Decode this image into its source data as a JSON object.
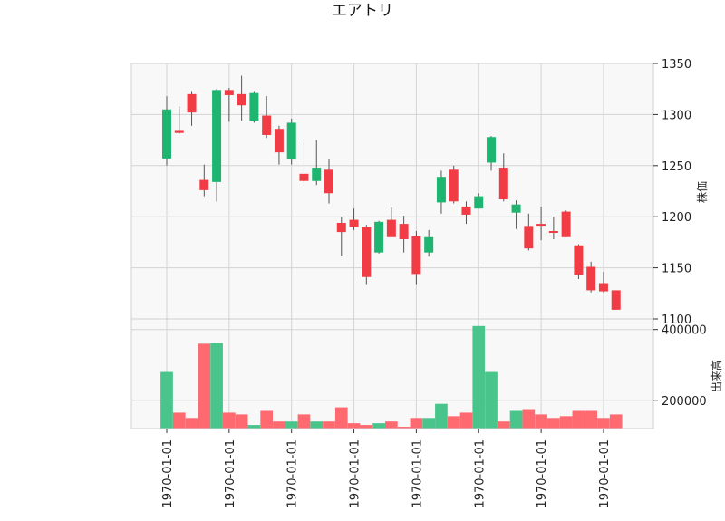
{
  "chart_data": {
    "type": "candlestick",
    "title": "エアトリ",
    "price_axis": {
      "label": "株価",
      "ylim": [
        1100,
        1350
      ],
      "ticks": [
        1100,
        1150,
        1200,
        1250,
        1300,
        1350
      ]
    },
    "volume_axis": {
      "label": "出来高",
      "ylim": [
        120000,
        430000
      ],
      "ticks": [
        200000,
        400000
      ],
      "tick_labels": [
        "200000",
        "400000"
      ]
    },
    "x_tick_labels": [
      "1970-01-01",
      "1970-01-01",
      "1970-01-01",
      "1970-01-01",
      "1970-01-01",
      "1970-01-01",
      "1970-01-01",
      "1970-01-01"
    ],
    "x_tick_positions": [
      0,
      5,
      10,
      15,
      20,
      25,
      30,
      35
    ],
    "grid": true,
    "colors": {
      "up": "#1db56f",
      "down": "#f23c45",
      "vol_up": "#49c58c",
      "vol_down": "#ff6a70",
      "panel_bg": "#f8f8f8",
      "grid": "#d4d4d4"
    },
    "candles": [
      {
        "o": 1257,
        "h": 1318,
        "l": 1250,
        "c": 1305,
        "v": 280000
      },
      {
        "o": 1284,
        "h": 1308,
        "l": 1281,
        "c": 1282,
        "v": 165000
      },
      {
        "o": 1320,
        "h": 1323,
        "l": 1289,
        "c": 1302,
        "v": 150000
      },
      {
        "o": 1236,
        "h": 1251,
        "l": 1220,
        "c": 1226,
        "v": 360000
      },
      {
        "o": 1234,
        "h": 1325,
        "l": 1215,
        "c": 1324,
        "v": 362000
      },
      {
        "o": 1324,
        "h": 1326,
        "l": 1293,
        "c": 1319,
        "v": 165000
      },
      {
        "o": 1320,
        "h": 1338,
        "l": 1294,
        "c": 1309,
        "v": 160000
      },
      {
        "o": 1294,
        "h": 1323,
        "l": 1292,
        "c": 1321,
        "v": 130000
      },
      {
        "o": 1299,
        "h": 1318,
        "l": 1277,
        "c": 1280,
        "v": 170000
      },
      {
        "o": 1286,
        "h": 1289,
        "l": 1251,
        "c": 1263,
        "v": 140000
      },
      {
        "o": 1256,
        "h": 1296,
        "l": 1251,
        "c": 1292,
        "v": 140000
      },
      {
        "o": 1242,
        "h": 1276,
        "l": 1230,
        "c": 1235,
        "v": 160000
      },
      {
        "o": 1235,
        "h": 1275,
        "l": 1231,
        "c": 1248,
        "v": 140000
      },
      {
        "o": 1246,
        "h": 1256,
        "l": 1213,
        "c": 1223,
        "v": 140000
      },
      {
        "o": 1194,
        "h": 1200,
        "l": 1162,
        "c": 1185,
        "v": 180000
      },
      {
        "o": 1197,
        "h": 1208,
        "l": 1187,
        "c": 1190,
        "v": 135000
      },
      {
        "o": 1190,
        "h": 1192,
        "l": 1134,
        "c": 1141,
        "v": 130000
      },
      {
        "o": 1165,
        "h": 1196,
        "l": 1164,
        "c": 1195,
        "v": 135000
      },
      {
        "o": 1197,
        "h": 1209,
        "l": 1180,
        "c": 1180,
        "v": 140000
      },
      {
        "o": 1193,
        "h": 1201,
        "l": 1165,
        "c": 1178,
        "v": 125000
      },
      {
        "o": 1181,
        "h": 1186,
        "l": 1134,
        "c": 1144,
        "v": 150000
      },
      {
        "o": 1165,
        "h": 1187,
        "l": 1161,
        "c": 1180,
        "v": 150000
      },
      {
        "o": 1214,
        "h": 1245,
        "l": 1203,
        "c": 1239,
        "v": 190000
      },
      {
        "o": 1246,
        "h": 1250,
        "l": 1213,
        "c": 1215,
        "v": 155000
      },
      {
        "o": 1210,
        "h": 1215,
        "l": 1193,
        "c": 1202,
        "v": 165000
      },
      {
        "o": 1208,
        "h": 1223,
        "l": 1208,
        "c": 1220,
        "v": 410000
      },
      {
        "o": 1253,
        "h": 1279,
        "l": 1245,
        "c": 1278,
        "v": 280000
      },
      {
        "o": 1248,
        "h": 1262,
        "l": 1215,
        "c": 1217,
        "v": 140000
      },
      {
        "o": 1204,
        "h": 1216,
        "l": 1188,
        "c": 1212,
        "v": 170000
      },
      {
        "o": 1191,
        "h": 1203,
        "l": 1167,
        "c": 1169,
        "v": 175000
      },
      {
        "o": 1193,
        "h": 1210,
        "l": 1177,
        "c": 1192,
        "v": 160000
      },
      {
        "o": 1186,
        "h": 1200,
        "l": 1178,
        "c": 1185,
        "v": 150000
      },
      {
        "o": 1205,
        "h": 1206,
        "l": 1180,
        "c": 1180,
        "v": 155000
      },
      {
        "o": 1172,
        "h": 1173,
        "l": 1139,
        "c": 1143,
        "v": 170000
      },
      {
        "o": 1151,
        "h": 1156,
        "l": 1126,
        "c": 1128,
        "v": 170000
      },
      {
        "o": 1135,
        "h": 1146,
        "l": 1126,
        "c": 1127,
        "v": 150000
      },
      {
        "o": 1128,
        "h": 1128,
        "l": 1109,
        "c": 1109,
        "v": 160000
      }
    ]
  }
}
